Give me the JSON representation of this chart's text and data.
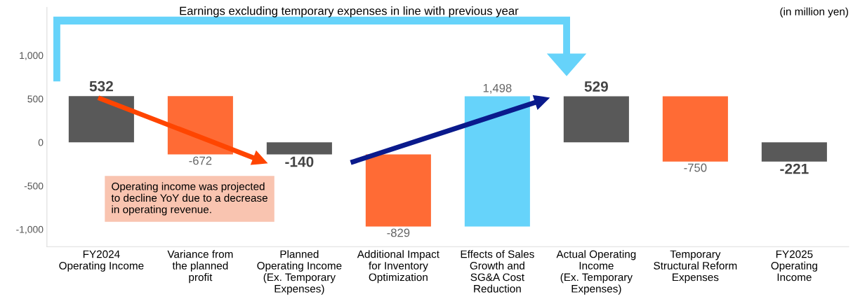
{
  "chart_data": {
    "type": "bar",
    "categories": [
      "FY2024\nOperating Income",
      "Variance from\nthe planned\nprofit",
      "Planned\nOperating Income\n(Ex. Temporary\nExpenses)",
      "Additional Impact\nfor Inventory\nOptimization",
      "Effects of Sales\nGrowth and\nSG&A Cost\nReduction",
      "Actual Operating\nIncome\n(Ex. Temporary\nExpenses)",
      "Temporary\nStructural Reform\nExpenses",
      "FY2025\nOperating\nIncome"
    ],
    "values": [
      532,
      -672,
      -140,
      -829,
      1498,
      529,
      -750,
      -221
    ],
    "base": [
      0,
      532,
      0,
      -140,
      -969,
      0,
      529,
      0
    ],
    "colors": [
      "#595959",
      "#ff6b35",
      "#595959",
      "#ff6b35",
      "#66d3fa",
      "#595959",
      "#ff6b35",
      "#595959"
    ],
    "value_labels": [
      "532",
      "-672",
      "-140",
      "-829",
      "1,498",
      "529",
      "-750",
      "-221"
    ],
    "ylim": [
      -1200,
      1550
    ],
    "yticks": [
      {
        "value": -1000,
        "label": "-1,000"
      },
      {
        "value": -500,
        "label": "-500"
      },
      0,
      500,
      {
        "value": 1000,
        "label": "1,000"
      }
    ],
    "grid": false,
    "annotations": [
      "Earnings excluding temporary expenses in line with previous year",
      "(in million yen)",
      "Operating income was projected\nto decline YoY due to a decrease\nin operating revenue."
    ]
  }
}
